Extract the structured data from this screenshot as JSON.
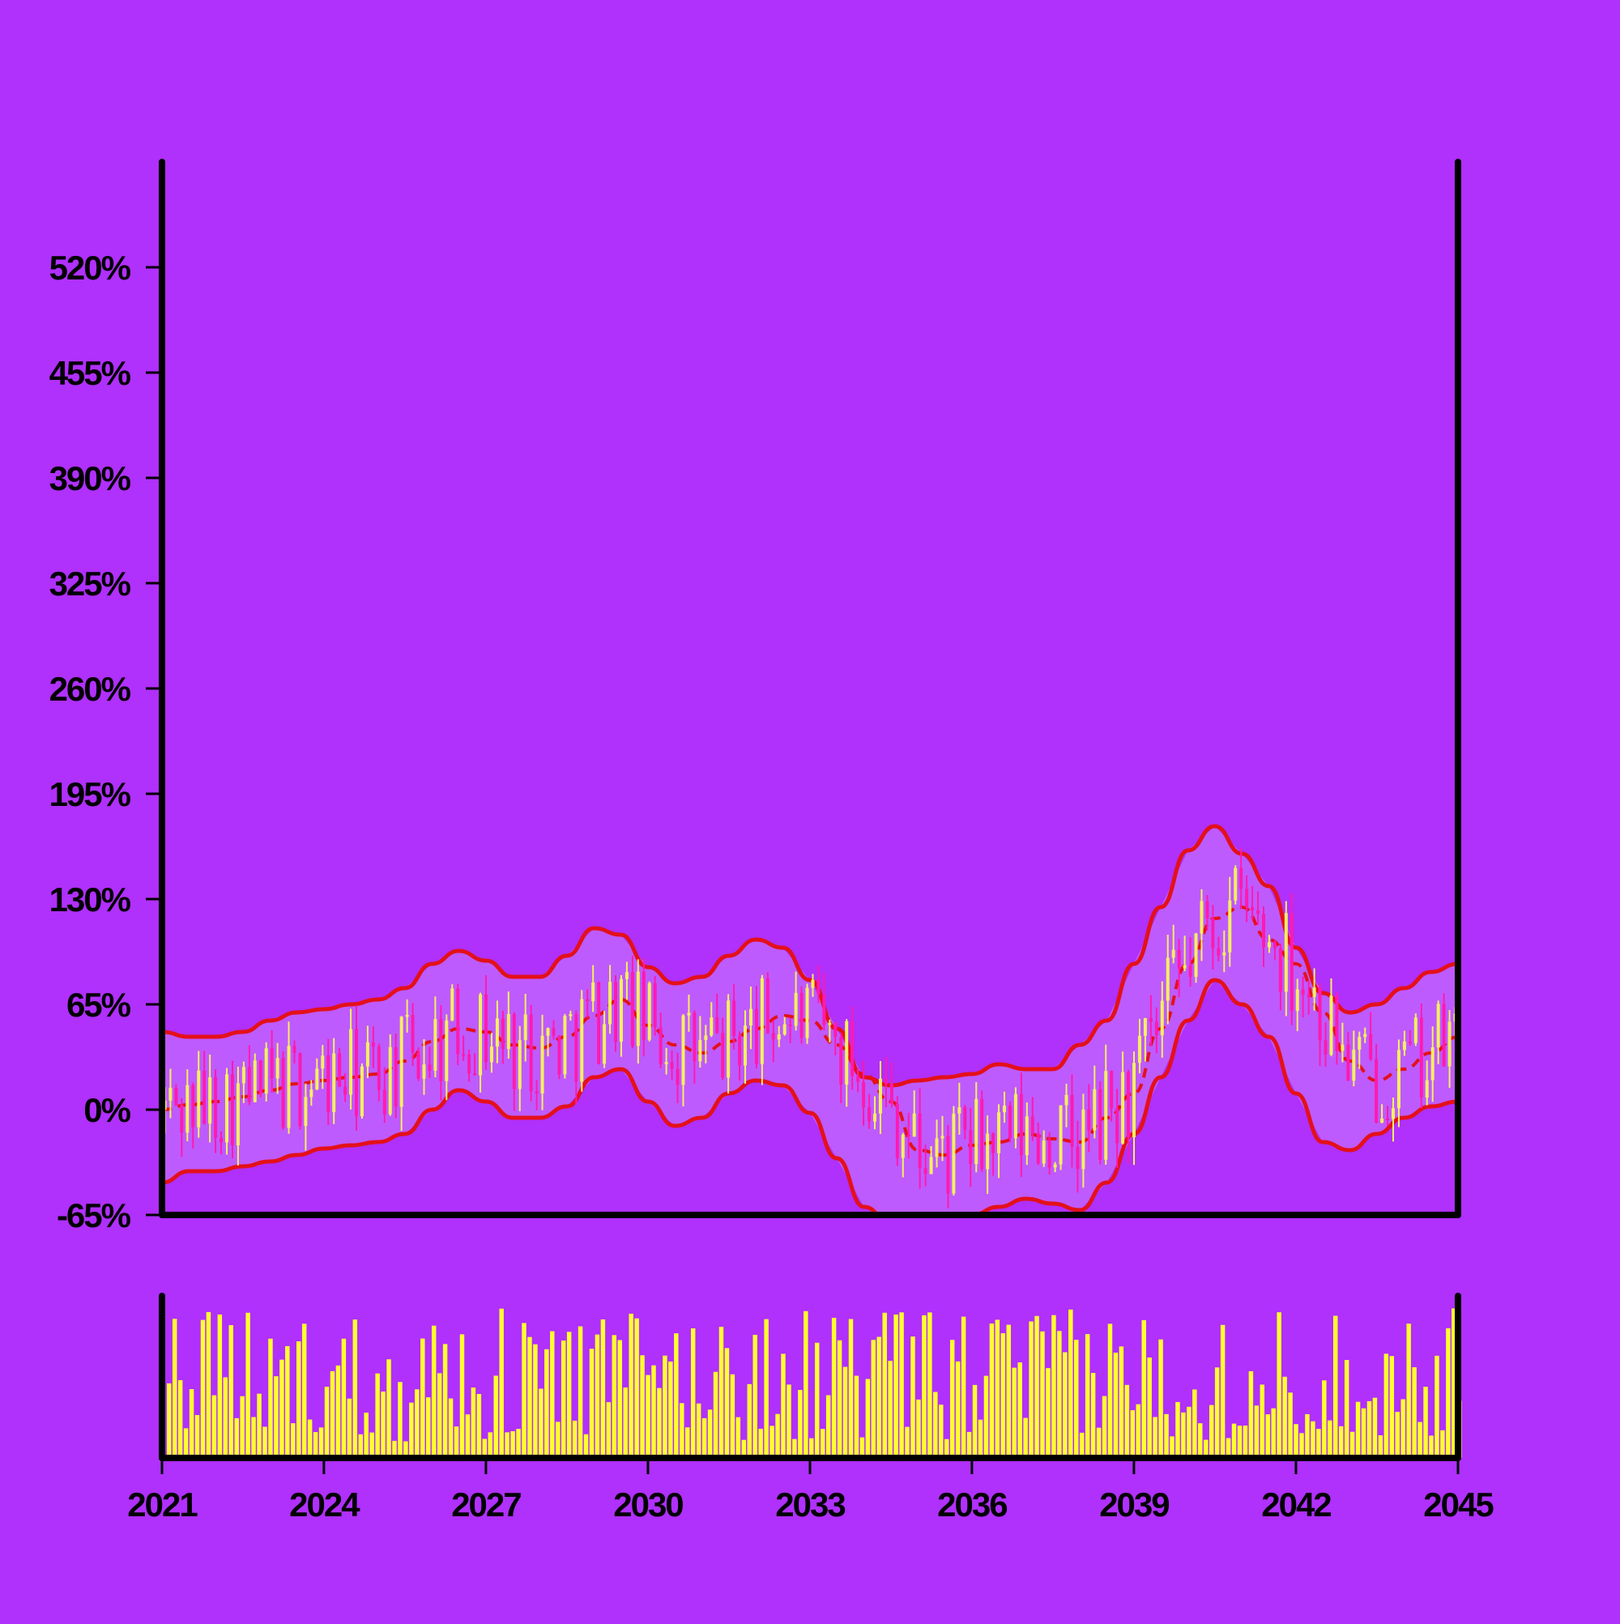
{
  "colors": {
    "background": "#b030fc",
    "axis": "#000000",
    "band_fill": "#c060ff",
    "band_line": "#e4101a",
    "up_candle": "#f4f060",
    "down_candle": "#ff1ab0",
    "volume": "#ffff30"
  },
  "chart_data": {
    "type": "candlestick",
    "title": "",
    "xlabel": "",
    "ylabel": "",
    "x_range": [
      "2021-01-01",
      "2045-01-01"
    ],
    "ylim": [
      -65,
      585
    ],
    "y_ticks": [
      {
        "value": 520,
        "label": "520%"
      },
      {
        "value": 455,
        "label": "455%"
      },
      {
        "value": 390,
        "label": "390%"
      },
      {
        "value": 325,
        "label": "325%"
      },
      {
        "value": 260,
        "label": "260%"
      },
      {
        "value": 195,
        "label": "195%"
      },
      {
        "value": 130,
        "label": "130%"
      },
      {
        "value": 65,
        "label": "65%"
      },
      {
        "value": 0,
        "label": "0%"
      },
      {
        "value": -65,
        "label": "-65%"
      }
    ],
    "x_ticks": [
      {
        "value": "2021-01-01",
        "label": "2021"
      },
      {
        "value": "2024-01-01",
        "label": "2024"
      },
      {
        "value": "2027-01-01",
        "label": "2027"
      },
      {
        "value": "2030-01-01",
        "label": "2030"
      },
      {
        "value": "2033-01-01",
        "label": "2033"
      },
      {
        "value": "2036-01-01",
        "label": "2036"
      },
      {
        "value": "2039-01-01",
        "label": "2039"
      },
      {
        "value": "2042-01-01",
        "label": "2042"
      },
      {
        "value": "2045-01-01",
        "label": "2045"
      }
    ],
    "grid": false,
    "legend": "none",
    "bollinger": {
      "x": [
        "2021-01",
        "2021-07",
        "2022-01",
        "2022-07",
        "2023-01",
        "2023-07",
        "2024-01",
        "2024-07",
        "2025-01",
        "2025-07",
        "2026-01",
        "2026-07",
        "2027-01",
        "2027-07",
        "2028-01",
        "2028-07",
        "2029-01",
        "2029-07",
        "2030-01",
        "2030-07",
        "2031-01",
        "2031-07",
        "2032-01",
        "2032-07",
        "2033-01",
        "2033-07",
        "2034-01",
        "2034-07",
        "2035-01",
        "2035-07",
        "2036-01",
        "2036-07",
        "2037-01",
        "2037-07",
        "2038-01",
        "2038-07",
        "2039-01",
        "2039-07",
        "2040-01",
        "2040-07",
        "2041-01",
        "2041-07",
        "2042-01",
        "2042-07",
        "2043-01",
        "2043-07",
        "2044-01",
        "2044-07",
        "2045-01"
      ],
      "middle": [
        0,
        3,
        5,
        8,
        12,
        16,
        18,
        20,
        22,
        30,
        42,
        50,
        48,
        40,
        38,
        45,
        58,
        68,
        52,
        40,
        35,
        42,
        50,
        58,
        55,
        40,
        22,
        5,
        -25,
        -28,
        -22,
        -20,
        -15,
        -18,
        -20,
        -5,
        10,
        50,
        90,
        118,
        125,
        105,
        90,
        60,
        30,
        18,
        25,
        35,
        45
      ],
      "upper": [
        48,
        45,
        45,
        48,
        55,
        60,
        62,
        65,
        68,
        75,
        90,
        98,
        92,
        82,
        82,
        95,
        112,
        108,
        88,
        78,
        82,
        95,
        105,
        100,
        80,
        50,
        20,
        15,
        18,
        20,
        22,
        28,
        25,
        25,
        40,
        55,
        90,
        125,
        160,
        175,
        158,
        138,
        100,
        72,
        60,
        65,
        75,
        85,
        90
      ],
      "lower": [
        -45,
        -38,
        -38,
        -35,
        -32,
        -28,
        -24,
        -22,
        -20,
        -15,
        0,
        12,
        5,
        -5,
        -5,
        2,
        20,
        25,
        5,
        -10,
        -5,
        10,
        18,
        15,
        -2,
        -30,
        -60,
        -70,
        -75,
        -72,
        -65,
        -60,
        -55,
        -58,
        -62,
        -45,
        -15,
        20,
        55,
        80,
        65,
        45,
        10,
        -20,
        -25,
        -15,
        -5,
        2,
        5
      ]
    },
    "candles": [],
    "volume": []
  }
}
